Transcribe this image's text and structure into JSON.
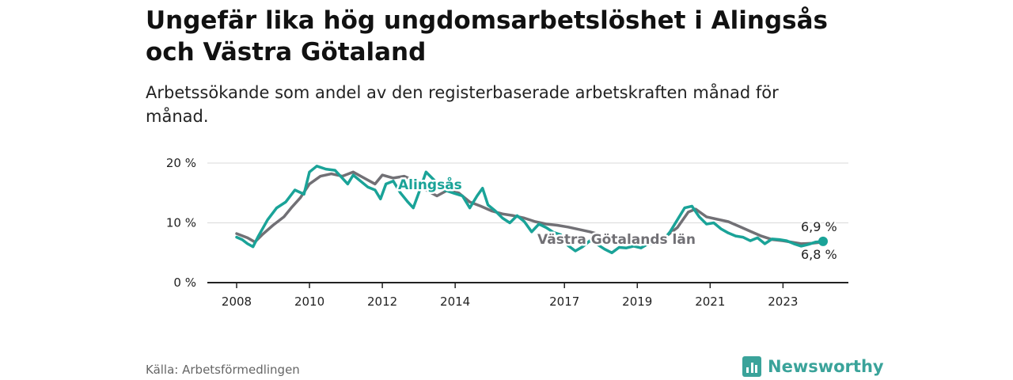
{
  "header": {
    "title": "Ungefär lika hög ungdomsarbetslöshet i Alingsås och Västra Götaland",
    "subtitle": "Arbetssökande som andel av den registerbaserade arbetskraften månad för månad."
  },
  "footer": {
    "source": "Källa: Arbetsförmedlingen",
    "brand": "Newsworthy"
  },
  "colors": {
    "alingsas": "#1aa398",
    "vastra": "#717075",
    "grid": "#d9d9d9",
    "axis": "#222222"
  },
  "chart_data": {
    "type": "line",
    "title": "Ungefär lika hög ungdomsarbetslöshet i Alingsås och Västra Götaland",
    "xlabel": "",
    "ylabel": "",
    "xlim": [
      2008,
      2024.8
    ],
    "ylim": [
      0,
      20
    ],
    "y_ticks": [
      {
        "value": 0,
        "label": "0 %"
      },
      {
        "value": 10,
        "label": "10 %"
      },
      {
        "value": 20,
        "label": "20 %"
      }
    ],
    "x_ticks": [
      {
        "value": 2008,
        "label": "2008"
      },
      {
        "value": 2010,
        "label": "2010"
      },
      {
        "value": 2012,
        "label": "2012"
      },
      {
        "value": 2014,
        "label": "2014"
      },
      {
        "value": 2017,
        "label": "2017"
      },
      {
        "value": 2019,
        "label": "2019"
      },
      {
        "value": 2021,
        "label": "2021"
      },
      {
        "value": 2023,
        "label": "2023"
      }
    ],
    "series": [
      {
        "name": "Västra Götalands län",
        "key": "vastra",
        "label": "Västra Götalands län",
        "end_label": "6,8 %",
        "points": [
          [
            2008,
            8.2
          ],
          [
            2008.3,
            7.5
          ],
          [
            2008.5,
            6.8
          ],
          [
            2008.7,
            8.0
          ],
          [
            2009,
            9.6
          ],
          [
            2009.3,
            11.0
          ],
          [
            2009.5,
            12.5
          ],
          [
            2009.75,
            14.2
          ],
          [
            2010,
            16.5
          ],
          [
            2010.3,
            17.8
          ],
          [
            2010.6,
            18.2
          ],
          [
            2010.9,
            17.8
          ],
          [
            2011.2,
            18.5
          ],
          [
            2011.5,
            17.5
          ],
          [
            2011.8,
            16.5
          ],
          [
            2012,
            18.0
          ],
          [
            2012.3,
            17.5
          ],
          [
            2012.6,
            17.8
          ],
          [
            2012.9,
            17.0
          ],
          [
            2013.2,
            15.5
          ],
          [
            2013.5,
            14.5
          ],
          [
            2013.8,
            15.5
          ],
          [
            2014.1,
            15.0
          ],
          [
            2014.4,
            13.5
          ],
          [
            2014.7,
            12.8
          ],
          [
            2015,
            12.0
          ],
          [
            2015.3,
            11.5
          ],
          [
            2015.6,
            11.2
          ],
          [
            2015.9,
            10.8
          ],
          [
            2016.2,
            10.2
          ],
          [
            2016.5,
            9.8
          ],
          [
            2016.8,
            9.6
          ],
          [
            2017.1,
            9.3
          ],
          [
            2017.4,
            8.9
          ],
          [
            2017.7,
            8.5
          ],
          [
            2018,
            8.0
          ],
          [
            2018.3,
            7.2
          ],
          [
            2018.6,
            6.6
          ],
          [
            2018.9,
            6.5
          ],
          [
            2019.2,
            6.6
          ],
          [
            2019.5,
            7.0
          ],
          [
            2019.8,
            7.8
          ],
          [
            2020.1,
            9.2
          ],
          [
            2020.4,
            11.8
          ],
          [
            2020.6,
            12.3
          ],
          [
            2020.9,
            11.0
          ],
          [
            2021.2,
            10.6
          ],
          [
            2021.5,
            10.2
          ],
          [
            2021.8,
            9.4
          ],
          [
            2022.1,
            8.6
          ],
          [
            2022.4,
            7.8
          ],
          [
            2022.7,
            7.2
          ],
          [
            2023,
            7.0
          ],
          [
            2023.3,
            6.7
          ],
          [
            2023.5,
            6.5
          ],
          [
            2023.8,
            6.6
          ],
          [
            2024.1,
            6.8
          ]
        ]
      },
      {
        "name": "Alingsås",
        "key": "alingsas",
        "label": "Alingsås",
        "end_label": "6,9 %",
        "points": [
          [
            2008,
            7.6
          ],
          [
            2008.15,
            7.2
          ],
          [
            2008.3,
            6.5
          ],
          [
            2008.45,
            6.0
          ],
          [
            2008.6,
            7.8
          ],
          [
            2008.85,
            10.5
          ],
          [
            2009.1,
            12.5
          ],
          [
            2009.35,
            13.5
          ],
          [
            2009.6,
            15.5
          ],
          [
            2009.85,
            14.8
          ],
          [
            2010,
            18.5
          ],
          [
            2010.2,
            19.5
          ],
          [
            2010.45,
            19.0
          ],
          [
            2010.7,
            18.8
          ],
          [
            2010.9,
            17.5
          ],
          [
            2011.05,
            16.5
          ],
          [
            2011.2,
            18.0
          ],
          [
            2011.4,
            17.0
          ],
          [
            2011.6,
            16.0
          ],
          [
            2011.8,
            15.5
          ],
          [
            2011.95,
            14.0
          ],
          [
            2012.1,
            16.5
          ],
          [
            2012.3,
            17.0
          ],
          [
            2012.5,
            15.0
          ],
          [
            2012.7,
            13.5
          ],
          [
            2012.85,
            12.5
          ],
          [
            2013,
            15.0
          ],
          [
            2013.2,
            18.5
          ],
          [
            2013.45,
            17.0
          ],
          [
            2013.7,
            15.5
          ],
          [
            2013.95,
            15.0
          ],
          [
            2014.2,
            14.5
          ],
          [
            2014.4,
            12.5
          ],
          [
            2014.6,
            14.5
          ],
          [
            2014.75,
            15.8
          ],
          [
            2014.9,
            13.0
          ],
          [
            2015.1,
            12.0
          ],
          [
            2015.3,
            10.8
          ],
          [
            2015.5,
            10.0
          ],
          [
            2015.7,
            11.2
          ],
          [
            2015.9,
            10.2
          ],
          [
            2016.1,
            8.5
          ],
          [
            2016.3,
            9.8
          ],
          [
            2016.5,
            9.2
          ],
          [
            2016.7,
            8.4
          ],
          [
            2016.9,
            8.0
          ],
          [
            2017.1,
            6.2
          ],
          [
            2017.3,
            5.3
          ],
          [
            2017.5,
            6.0
          ],
          [
            2017.7,
            7.0
          ],
          [
            2017.9,
            6.4
          ],
          [
            2018.1,
            5.6
          ],
          [
            2018.3,
            5.0
          ],
          [
            2018.5,
            5.9
          ],
          [
            2018.7,
            5.8
          ],
          [
            2018.9,
            6.1
          ],
          [
            2019.1,
            5.8
          ],
          [
            2019.3,
            6.5
          ],
          [
            2019.5,
            6.5
          ],
          [
            2019.7,
            7.0
          ],
          [
            2019.9,
            8.5
          ],
          [
            2020.1,
            10.5
          ],
          [
            2020.3,
            12.5
          ],
          [
            2020.5,
            12.8
          ],
          [
            2020.7,
            11.0
          ],
          [
            2020.9,
            9.8
          ],
          [
            2021.1,
            10.0
          ],
          [
            2021.3,
            9.0
          ],
          [
            2021.5,
            8.3
          ],
          [
            2021.7,
            7.8
          ],
          [
            2021.9,
            7.6
          ],
          [
            2022.1,
            7.0
          ],
          [
            2022.3,
            7.5
          ],
          [
            2022.5,
            6.5
          ],
          [
            2022.7,
            7.3
          ],
          [
            2022.9,
            7.2
          ],
          [
            2023.1,
            7.0
          ],
          [
            2023.3,
            6.5
          ],
          [
            2023.5,
            6.1
          ],
          [
            2023.7,
            6.4
          ],
          [
            2023.9,
            6.8
          ],
          [
            2024.1,
            6.9
          ]
        ]
      }
    ],
    "annotations": [
      {
        "text": "Alingsås",
        "series": "Alingsås"
      },
      {
        "text": "Västra Götalands län",
        "series": "Västra Götalands län"
      }
    ]
  }
}
